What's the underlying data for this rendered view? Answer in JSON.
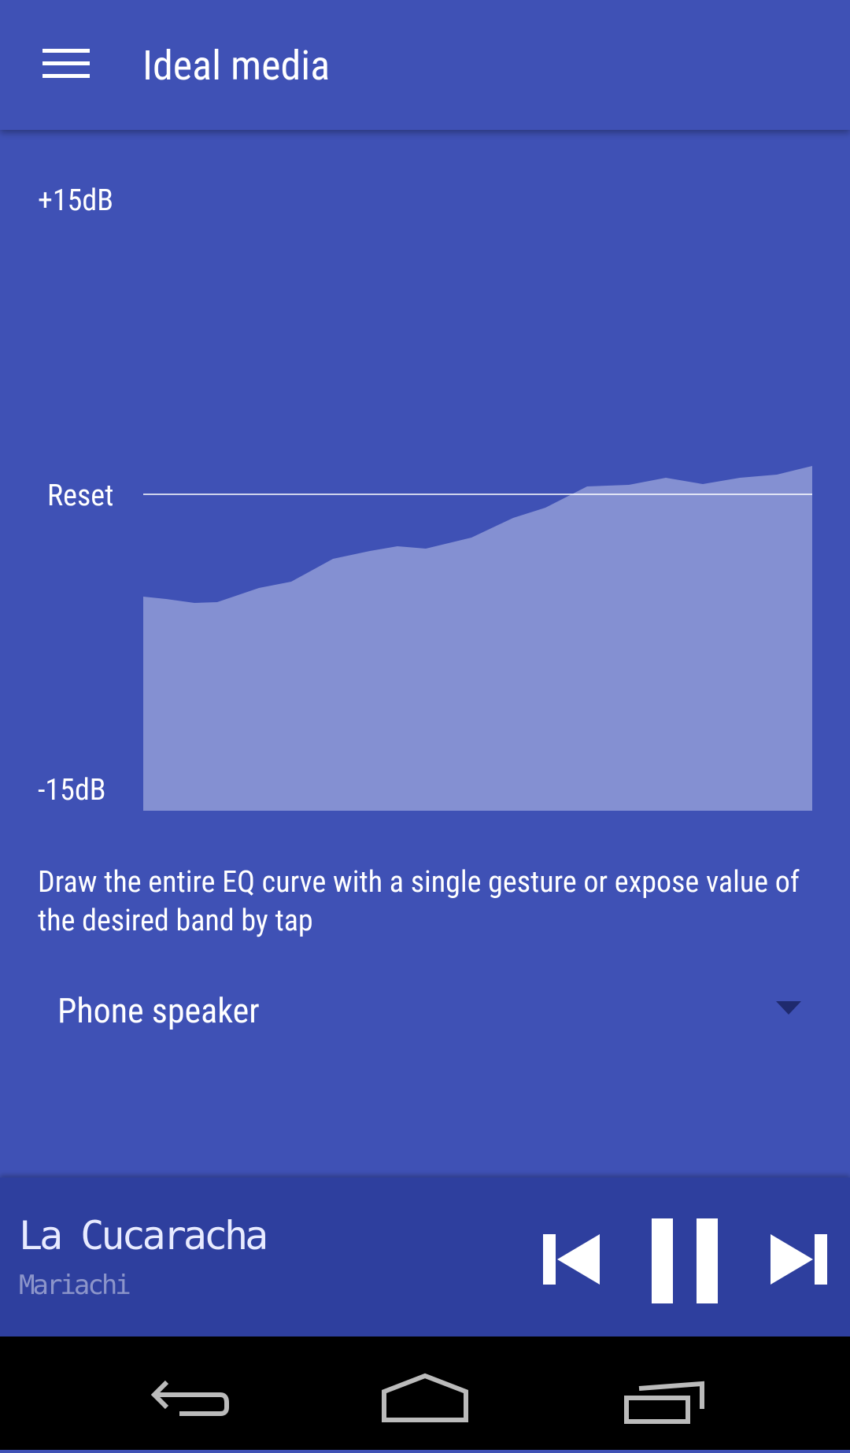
{
  "app_bar": {
    "title": "Ideal media"
  },
  "equalizer": {
    "max_label": "+15dB",
    "reset_label": "Reset",
    "min_label": "-15dB",
    "hint": "Draw the entire EQ curve with a single gesture or expose value of the desired band by tap"
  },
  "output": {
    "selected": "Phone speaker"
  },
  "player": {
    "track_title": "La Cucaracha",
    "artist": "Mariachi"
  }
}
